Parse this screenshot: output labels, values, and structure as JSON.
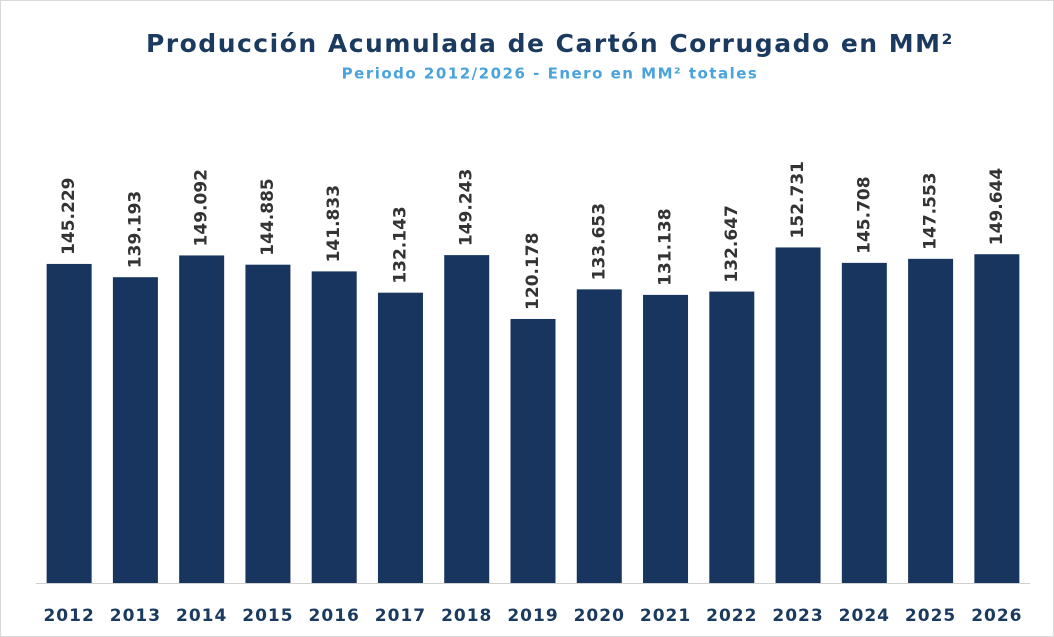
{
  "chart_data": {
    "type": "bar",
    "title": "Producción Acumulada de Cartón Corrugado en MM²",
    "subtitle": "Periodo 2012/2026 - Enero en MM² totales",
    "categories": [
      "2012",
      "2013",
      "2014",
      "2015",
      "2016",
      "2017",
      "2018",
      "2019",
      "2020",
      "2021",
      "2022",
      "2023",
      "2024",
      "2025",
      "2026"
    ],
    "values": [
      145.229,
      139.193,
      149.092,
      144.885,
      141.833,
      132.143,
      149.243,
      120.178,
      133.653,
      131.138,
      132.647,
      152.731,
      145.708,
      147.553,
      149.644
    ],
    "color": "#17355e"
  }
}
